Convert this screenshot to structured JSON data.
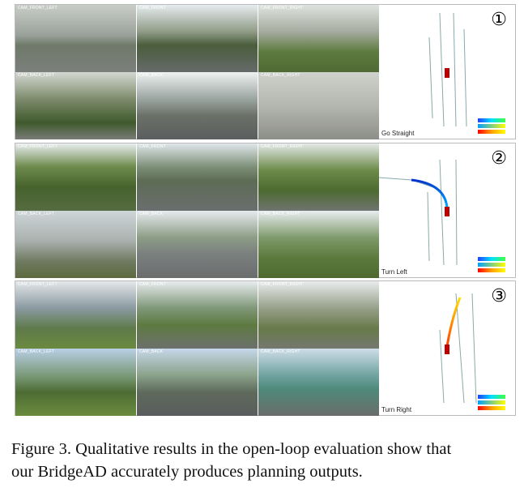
{
  "panels": [
    {
      "number": "①",
      "command": "Go Straight",
      "cameras": [
        "CAM_FRONT_LEFT",
        "CAM_FRONT",
        "CAM_FRONT_RIGHT",
        "CAM_BACK_LEFT",
        "CAM_BACK",
        "CAM_BACK_RIGHT"
      ]
    },
    {
      "number": "②",
      "command": "Turn Left",
      "cameras": [
        "CAM_FRONT_LEFT",
        "CAM_FRONT",
        "CAM_FRONT_RIGHT",
        "CAM_BACK_LEFT",
        "CAM_BACK",
        "CAM_BACK_RIGHT"
      ]
    },
    {
      "number": "③",
      "command": "Turn Right",
      "cameras": [
        "CAM_FRONT_LEFT",
        "CAM_FRONT",
        "CAM_FRONT_RIGHT",
        "CAM_BACK_LEFT",
        "CAM_BACK",
        "CAM_BACK_RIGHT"
      ]
    }
  ],
  "caption": {
    "line1": "Figure 3. Qualitative results in the open-loop evaluation show that",
    "line2": "our BridgeAD accurately produces planning outputs."
  }
}
